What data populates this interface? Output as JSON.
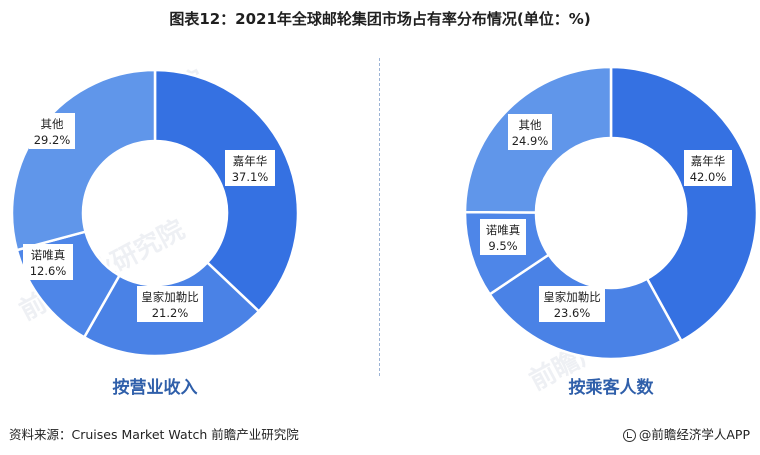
{
  "title": "图表12：2021年全球邮轮集团市场占有率分布情况(单位：%)",
  "footer": {
    "source": "资料来源：Cruises Market Watch 前瞻产业研究院",
    "brand": "@前瞻经济学人APP"
  },
  "watermark": "前瞻产业研究院",
  "colors": {
    "嘉年华": "#3571e2",
    "皇家加勒比": "#4a82e6",
    "诺唯真": "#4e86e8",
    "其他": "#6096ea",
    "edge": "#ffffff",
    "caption": "#2f5faa"
  },
  "chart_data": [
    {
      "type": "pie",
      "donut": true,
      "caption": "按营业收入",
      "slices": [
        {
          "label": "嘉年华",
          "value_text": "37.1%",
          "value": 37.1
        },
        {
          "label": "皇家加勒比",
          "value_text": "21.2%",
          "value": 21.2
        },
        {
          "label": "诺唯真",
          "value_text": "12.6%",
          "value": 12.6
        },
        {
          "label": "其他",
          "value_text": "29.2%",
          "value": 29.2
        }
      ]
    },
    {
      "type": "pie",
      "donut": true,
      "caption": "按乘客人数",
      "slices": [
        {
          "label": "嘉年华",
          "value_text": "42.0%",
          "value": 42.0
        },
        {
          "label": "皇家加勒比",
          "value_text": "23.6%",
          "value": 23.6
        },
        {
          "label": "诺唯真",
          "value_text": "9.5%",
          "value": 9.5
        },
        {
          "label": "其他",
          "value_text": "24.9%",
          "value": 24.9
        }
      ]
    }
  ]
}
